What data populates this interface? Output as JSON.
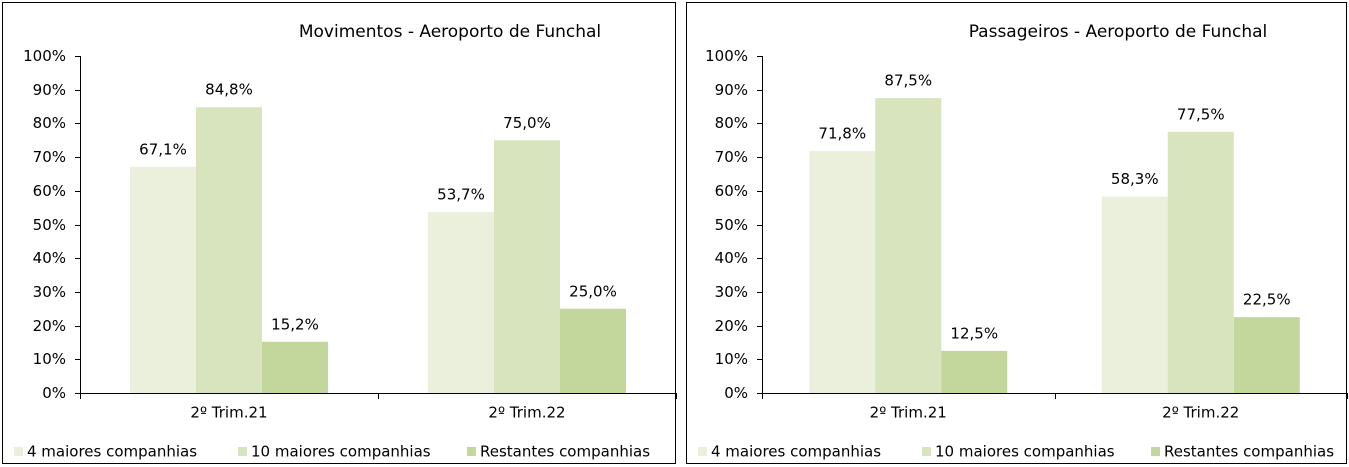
{
  "chart_data": [
    {
      "type": "bar",
      "title": "Movimentos - Aeroporto de Funchal",
      "categories": [
        "2º Trim.21",
        "2º Trim.22"
      ],
      "series": [
        {
          "name": "4 maiores companhias",
          "color": "#ebf0dc",
          "values": [
            67.1,
            53.7
          ],
          "value_labels": [
            "67,1%",
            "53,7%"
          ]
        },
        {
          "name": "10 maiores companhias",
          "color": "#d7e4bd",
          "values": [
            84.8,
            75.0
          ],
          "value_labels": [
            "84,8%",
            "75,0%"
          ]
        },
        {
          "name": "Restantes companhias",
          "color": "#c3d69b",
          "values": [
            15.2,
            25.0
          ],
          "value_labels": [
            "15,2%",
            "25,0%"
          ]
        }
      ],
      "ylim": [
        0,
        100
      ],
      "yticks": [
        {
          "value": 0,
          "label": "0%"
        },
        {
          "value": 10,
          "label": "10%"
        },
        {
          "value": 20,
          "label": "20%"
        },
        {
          "value": 30,
          "label": "30%"
        },
        {
          "value": 40,
          "label": "40%"
        },
        {
          "value": 50,
          "label": "50%"
        },
        {
          "value": 60,
          "label": "60%"
        },
        {
          "value": 70,
          "label": "70%"
        },
        {
          "value": 80,
          "label": "80%"
        },
        {
          "value": 90,
          "label": "90%"
        },
        {
          "value": 100,
          "label": "100%"
        }
      ],
      "legend": "bottom"
    },
    {
      "type": "bar",
      "title": "Passageiros - Aeroporto de Funchal",
      "categories": [
        "2º Trim.21",
        "2º Trim.22"
      ],
      "series": [
        {
          "name": "4 maiores companhias",
          "color": "#ebf0dc",
          "values": [
            71.8,
            58.3
          ],
          "value_labels": [
            "71,8%",
            "58,3%"
          ]
        },
        {
          "name": "10 maiores companhias",
          "color": "#d7e4bd",
          "values": [
            87.5,
            77.5
          ],
          "value_labels": [
            "87,5%",
            "77,5%"
          ]
        },
        {
          "name": "Restantes companhias",
          "color": "#c3d69b",
          "values": [
            12.5,
            22.5
          ],
          "value_labels": [
            "12,5%",
            "22,5%"
          ]
        }
      ],
      "ylim": [
        0,
        100
      ],
      "yticks": [
        {
          "value": 0,
          "label": "0%"
        },
        {
          "value": 10,
          "label": "10%"
        },
        {
          "value": 20,
          "label": "20%"
        },
        {
          "value": 30,
          "label": "30%"
        },
        {
          "value": 40,
          "label": "40%"
        },
        {
          "value": 50,
          "label": "50%"
        },
        {
          "value": 60,
          "label": "60%"
        },
        {
          "value": 70,
          "label": "70%"
        },
        {
          "value": 80,
          "label": "80%"
        },
        {
          "value": 90,
          "label": "90%"
        },
        {
          "value": 100,
          "label": "100%"
        }
      ],
      "legend": "bottom"
    }
  ]
}
